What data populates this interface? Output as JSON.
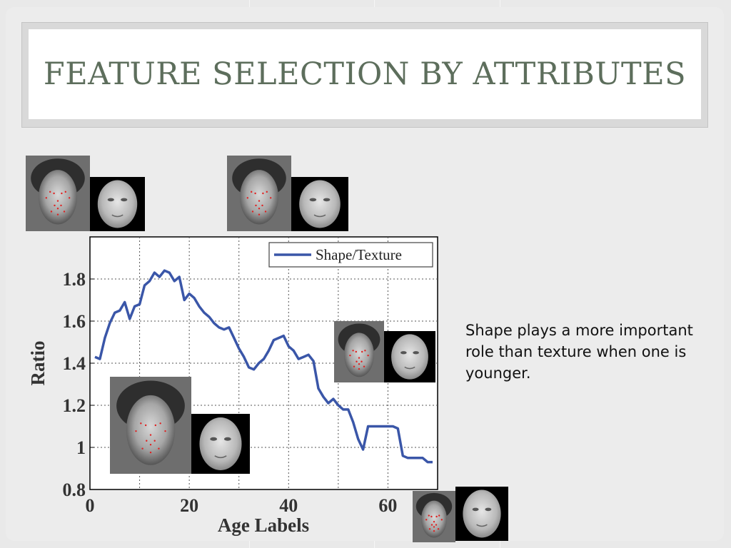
{
  "slide": {
    "title": "Feature selection by attributes",
    "body_text": "Shape plays a more important role than texture when one is younger."
  },
  "colors": {
    "title": "#5d6e5c",
    "series": "#3a56a8",
    "background": "#ececec"
  },
  "chart_data": {
    "type": "line",
    "xlabel": "Age Labels",
    "ylabel": "Ratio",
    "xlim": [
      0,
      70
    ],
    "ylim": [
      0.8,
      2.0
    ],
    "x_ticks": [
      "0",
      "20",
      "40",
      "60"
    ],
    "y_ticks": [
      "0.8",
      "1",
      "1.2",
      "1.4",
      "1.6",
      "1.8"
    ],
    "grid": true,
    "legend_position": "top-right",
    "series": [
      {
        "name": "Shape/Texture",
        "x": [
          1,
          2,
          3,
          4,
          5,
          6,
          7,
          8,
          9,
          10,
          11,
          12,
          13,
          14,
          15,
          16,
          17,
          18,
          19,
          20,
          21,
          22,
          23,
          24,
          25,
          26,
          27,
          28,
          29,
          30,
          31,
          32,
          33,
          34,
          35,
          36,
          37,
          38,
          39,
          40,
          41,
          42,
          43,
          44,
          45,
          46,
          47,
          48,
          49,
          50,
          51,
          52,
          53,
          54,
          55,
          56,
          57,
          58,
          59,
          60,
          61,
          62,
          63,
          64,
          65,
          66,
          67,
          68,
          69
        ],
        "values": [
          1.43,
          1.42,
          1.52,
          1.59,
          1.64,
          1.65,
          1.69,
          1.61,
          1.67,
          1.68,
          1.77,
          1.79,
          1.83,
          1.81,
          1.84,
          1.83,
          1.79,
          1.81,
          1.7,
          1.73,
          1.71,
          1.67,
          1.64,
          1.62,
          1.59,
          1.57,
          1.56,
          1.57,
          1.52,
          1.47,
          1.43,
          1.38,
          1.37,
          1.4,
          1.42,
          1.46,
          1.51,
          1.52,
          1.53,
          1.48,
          1.46,
          1.42,
          1.43,
          1.44,
          1.41,
          1.28,
          1.24,
          1.21,
          1.23,
          1.2,
          1.18,
          1.18,
          1.12,
          1.04,
          0.99,
          1.1,
          1.1,
          1.1,
          1.1,
          1.1,
          1.1,
          1.09,
          0.96,
          0.95,
          0.95,
          0.95,
          0.95,
          0.93,
          0.93
        ]
      }
    ]
  },
  "faces": [
    {
      "label": "child-face-with-landmarks"
    },
    {
      "label": "child-face-normalized"
    },
    {
      "label": "woman-face-with-landmarks"
    },
    {
      "label": "woman-face-normalized"
    },
    {
      "label": "elderly-face-with-landmarks"
    },
    {
      "label": "elderly-face-normalized"
    },
    {
      "label": "young-woman-face-with-landmarks"
    },
    {
      "label": "young-woman-face-normalized"
    },
    {
      "label": "older-man-face-photo"
    },
    {
      "label": "older-man-face-normalized"
    }
  ]
}
